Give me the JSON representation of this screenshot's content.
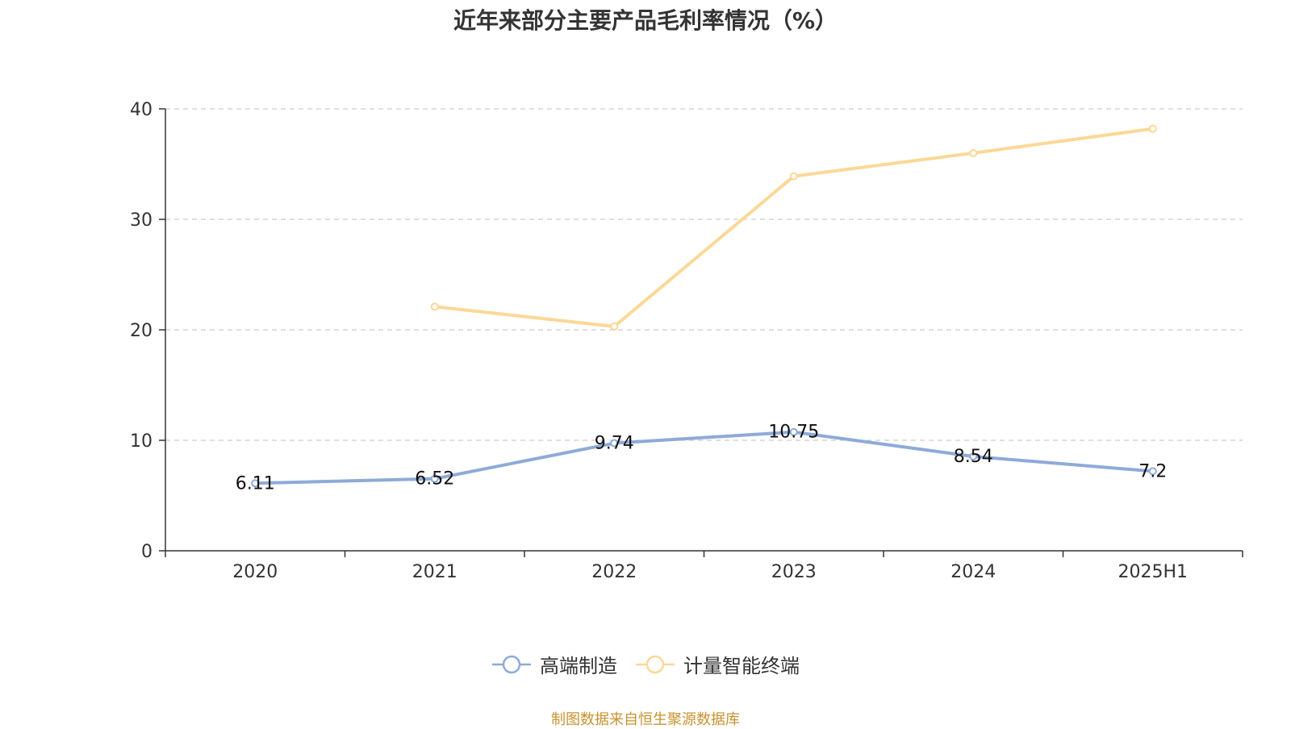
{
  "colors": {
    "series_high_end": "#8eaad8",
    "series_smart_terminal": "#fbd896",
    "grid": "#cccccc",
    "axis": "#333333",
    "text": "#333333",
    "source": "#c8922e"
  },
  "chart_data": {
    "type": "line",
    "title": "近年来部分主要产品毛利率情况（%）",
    "categories": [
      "2020",
      "2021",
      "2022",
      "2023",
      "2024",
      "2025H1"
    ],
    "ylim": [
      0,
      40
    ],
    "yticks": [
      0,
      10,
      20,
      30,
      40
    ],
    "grid": true,
    "legend_position": "bottom",
    "series": [
      {
        "name": "高端制造",
        "values": [
          6.11,
          6.52,
          9.74,
          10.75,
          8.54,
          7.2
        ],
        "labels": [
          "6.11",
          "6.52",
          "9.74",
          "10.75",
          "8.54",
          "7.2"
        ]
      },
      {
        "name": "计量智能终端",
        "values": [
          null,
          22.1,
          20.3,
          33.9,
          36.0,
          38.2
        ]
      }
    ]
  },
  "source_note": "制图数据来自恒生聚源数据库"
}
